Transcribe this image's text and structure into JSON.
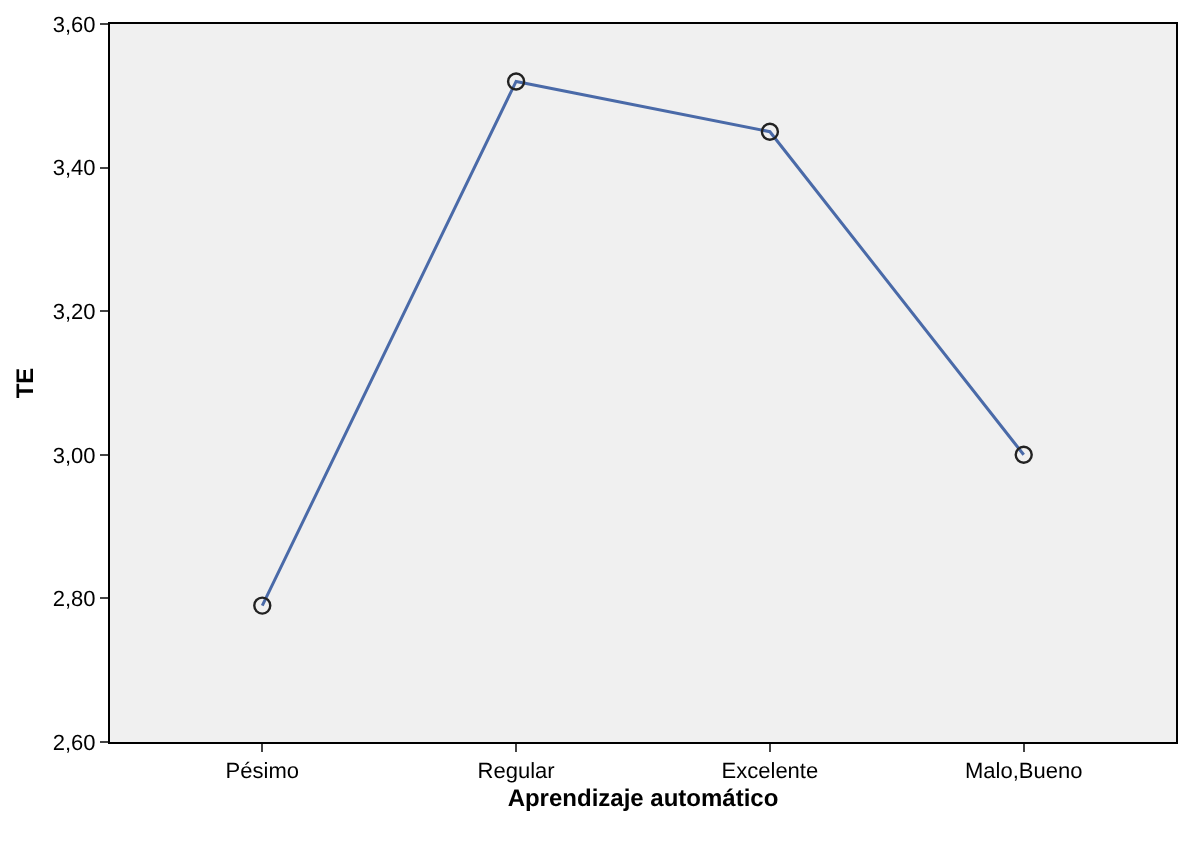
{
  "chart_data": {
    "type": "line",
    "xlabel": "Aprendizaje automático",
    "ylabel": "TE",
    "categories": [
      "Pésimo",
      "Regular",
      "Excelente",
      "Malo,Bueno"
    ],
    "series": [
      {
        "color": "#4a6aa8",
        "values": [
          2.79,
          3.52,
          3.45,
          3.0
        ]
      }
    ],
    "ylim": [
      2.6,
      3.6
    ],
    "yticks": [
      {
        "value": 2.6,
        "label": "2,60"
      },
      {
        "value": 2.8,
        "label": "2,80"
      },
      {
        "value": 3.0,
        "label": "3,00"
      },
      {
        "value": 3.2,
        "label": "3,20"
      },
      {
        "value": 3.4,
        "label": "3,40"
      },
      {
        "value": 3.6,
        "label": "3,60"
      }
    ],
    "marker": "circle",
    "line_style": "solid",
    "grid": false,
    "legend": false
  }
}
